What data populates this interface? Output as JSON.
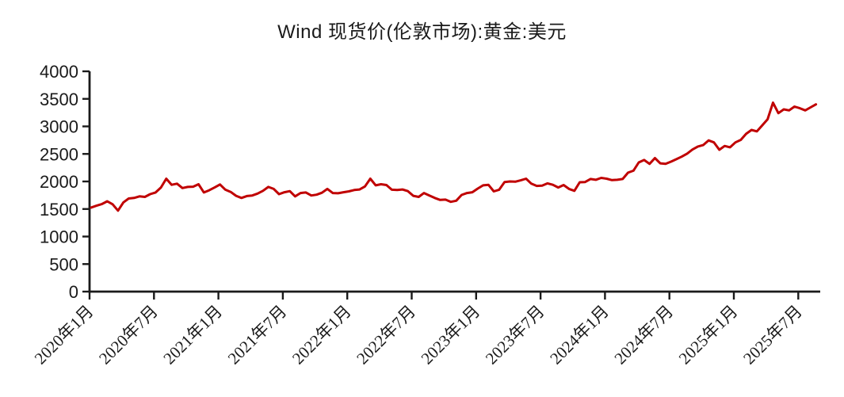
{
  "title": "Wind 现货价(伦敦市场):黄金:美元",
  "chart_data": {
    "type": "line",
    "title": "Wind 现货价(伦敦市场):黄金:美元",
    "series_name": "现货价(伦敦市场):黄金:美元",
    "line_color": "#C00000",
    "axis_color": "#1a1a1a",
    "ylim": [
      0,
      4000
    ],
    "y_tick_step": 500,
    "y_tick_labels": [
      "0",
      "500",
      "1000",
      "1500",
      "2000",
      "2500",
      "3000",
      "3500",
      "4000"
    ],
    "x_tick_labels": [
      "2020年1月",
      "2020年7月",
      "2021年1月",
      "2021年7月",
      "2022年1月",
      "2022年7月",
      "2023年1月",
      "2023年7月",
      "2024年1月",
      "2024年7月",
      "2025年1月",
      "2025年7月"
    ],
    "x_start_label": "2020年1月",
    "points_per_month": 2,
    "months_per_x_tick": 6,
    "grid": false,
    "legend": "none",
    "values": [
      1527,
      1560,
      1590,
      1640,
      1585,
      1470,
      1620,
      1690,
      1700,
      1730,
      1720,
      1770,
      1800,
      1890,
      2050,
      1940,
      1960,
      1880,
      1900,
      1905,
      1950,
      1800,
      1840,
      1890,
      1945,
      1850,
      1810,
      1740,
      1700,
      1735,
      1745,
      1780,
      1830,
      1900,
      1865,
      1770,
      1805,
      1825,
      1730,
      1790,
      1800,
      1745,
      1760,
      1795,
      1865,
      1790,
      1785,
      1805,
      1820,
      1845,
      1855,
      1910,
      2050,
      1930,
      1950,
      1935,
      1850,
      1845,
      1855,
      1825,
      1740,
      1720,
      1790,
      1745,
      1700,
      1665,
      1670,
      1630,
      1650,
      1755,
      1790,
      1805,
      1870,
      1930,
      1940,
      1820,
      1850,
      1990,
      2000,
      1995,
      2020,
      2050,
      1960,
      1920,
      1925,
      1965,
      1940,
      1890,
      1935,
      1865,
      1830,
      1985,
      1990,
      2045,
      2030,
      2065,
      2050,
      2025,
      2030,
      2045,
      2160,
      2195,
      2345,
      2390,
      2320,
      2425,
      2330,
      2320,
      2360,
      2405,
      2450,
      2505,
      2580,
      2635,
      2660,
      2745,
      2710,
      2575,
      2645,
      2620,
      2710,
      2755,
      2865,
      2935,
      2910,
      3020,
      3130,
      3430,
      3240,
      3310,
      3290,
      3360,
      3330,
      3290,
      3345,
      3400
    ]
  }
}
